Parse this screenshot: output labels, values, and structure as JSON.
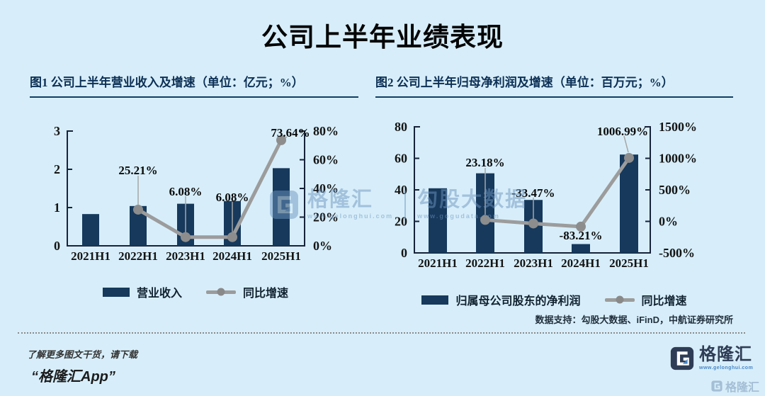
{
  "page": {
    "title": "公司上半年业绩表现",
    "background": "#d7eefa"
  },
  "colors": {
    "bar_navy": "#16395c",
    "line_gray": "#9c9c9c",
    "dot_gray": "#8d8d8d",
    "axis_dark": "#16233a",
    "heading_navy": "#0c2f55",
    "logo_navy": "#2f3c55",
    "link_blue": "#4a86c8",
    "background": "#d7eefa"
  },
  "chart_data": [
    {
      "type": "bar+line",
      "title": "图1 公司上半年营业收入及增速（单位：亿元；%）",
      "categories": [
        "2021H1",
        "2022H1",
        "2023H1",
        "2024H1",
        "2025H1"
      ],
      "series": [
        {
          "name": "营业收入",
          "type": "bar",
          "axis": "left",
          "values": [
            0.83,
            1.04,
            1.1,
            1.17,
            2.03
          ]
        },
        {
          "name": "同比增速",
          "type": "line",
          "axis": "right",
          "values": [
            null,
            25.21,
            6.08,
            6.08,
            73.64
          ],
          "point_labels": [
            "",
            "25.21%",
            "6.08%",
            "6.08%",
            "73.64%"
          ]
        }
      ],
      "left_axis": {
        "min": 0,
        "max": 3,
        "ticks": [
          "0",
          "1",
          "2",
          "3"
        ],
        "unit": "亿元"
      },
      "right_axis": {
        "min": 0,
        "max": 80,
        "ticks": [
          "0%",
          "20%",
          "40%",
          "60%",
          "80%"
        ],
        "unit": "%"
      },
      "legend_position": "bottom",
      "grid": false
    },
    {
      "type": "bar+line",
      "title": "图2 公司上半年归母净利润及增速（单位：百万元；%）",
      "categories": [
        "2021H1",
        "2022H1",
        "2023H1",
        "2024H1",
        "2025H1"
      ],
      "series": [
        {
          "name": "归属母公司股东的净利润",
          "type": "bar",
          "axis": "left",
          "values": [
            41,
            50.5,
            33.6,
            5.6,
            62.4
          ]
        },
        {
          "name": "同比增速",
          "type": "line",
          "axis": "right",
          "values": [
            null,
            23.18,
            -33.47,
            -83.21,
            1006.99
          ],
          "point_labels": [
            "",
            "23.18%",
            "-33.47%",
            "-83.21%",
            "1006.99%"
          ]
        }
      ],
      "left_axis": {
        "min": 0,
        "max": 80,
        "ticks": [
          "0",
          "20",
          "40",
          "60",
          "80"
        ],
        "unit": "百万元"
      },
      "right_axis": {
        "min": -500,
        "max": 1500,
        "ticks": [
          "-500%",
          "0%",
          "500%",
          "1000%",
          "1500%"
        ],
        "unit": "%"
      },
      "legend_position": "bottom",
      "grid": false
    }
  ],
  "source_note": "数据支持：勾股大数据、iFinD，中航证券研究所",
  "watermark_center": {
    "brand": "格隆汇",
    "brand_url": "www.gelonghui.com",
    "partner": "勾股大数据",
    "partner_url": "www.gogudata.com"
  },
  "footer": {
    "promo_line": "了解更多图文干货，请下载",
    "app_name": "“格隆汇App”",
    "logo_text": "格隆汇",
    "logo_url": "www.gelonghui.com"
  }
}
